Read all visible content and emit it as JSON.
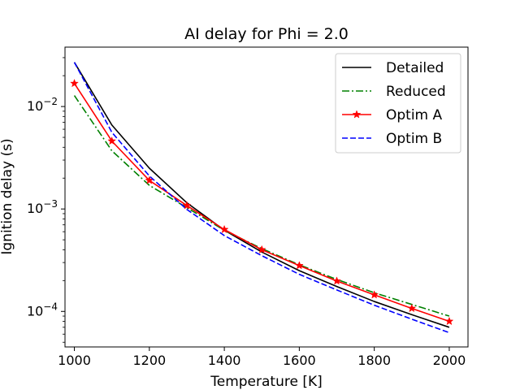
{
  "chart_data": {
    "type": "line",
    "title": "AI delay for Phi = 2.0",
    "xlabel": "Temperature [K]",
    "ylabel": "Ignition delay (s)",
    "xlim": [
      975,
      2050
    ],
    "ylim": [
      4.5e-05,
      0.038
    ],
    "yscale": "log",
    "x_ticks": [
      1000,
      1200,
      1400,
      1600,
      1800,
      2000
    ],
    "y_ticks": [
      {
        "value": 0.0001,
        "base": "10",
        "exp": "−4"
      },
      {
        "value": 0.001,
        "base": "10",
        "exp": "−3"
      },
      {
        "value": 0.01,
        "base": "10",
        "exp": "−2"
      }
    ],
    "grid": false,
    "legend_position": "top-right",
    "series": [
      {
        "name": "Detailed",
        "color": "#000000",
        "linestyle": "solid",
        "marker": "none",
        "x": [
          1000,
          1100,
          1200,
          1300,
          1400,
          1500,
          1600,
          1700,
          1800,
          1900,
          2000
        ],
        "y": [
          0.027,
          0.0066,
          0.0025,
          0.00115,
          0.00062,
          0.00038,
          0.00025,
          0.000175,
          0.000125,
          9.3e-05,
          7e-05
        ]
      },
      {
        "name": "Reduced",
        "color": "#008000",
        "linestyle": "dashdot",
        "marker": "none",
        "x": [
          1000,
          1100,
          1200,
          1300,
          1400,
          1500,
          1600,
          1700,
          1800,
          1900,
          2000
        ],
        "y": [
          0.0128,
          0.0037,
          0.0017,
          0.00103,
          0.00062,
          0.00041,
          0.000285,
          0.000205,
          0.000152,
          0.000117,
          9e-05
        ]
      },
      {
        "name": "Optim A",
        "color": "#ff0000",
        "linestyle": "solid",
        "marker": "star",
        "x": [
          1000,
          1100,
          1200,
          1300,
          1400,
          1500,
          1600,
          1700,
          1800,
          1900,
          2000
        ],
        "y": [
          0.0168,
          0.0046,
          0.0019,
          0.00108,
          0.00063,
          0.0004,
          0.00028,
          0.000198,
          0.000145,
          0.000107,
          8e-05
        ]
      },
      {
        "name": "Optim B",
        "color": "#0000ff",
        "linestyle": "dashed",
        "marker": "none",
        "x": [
          1000,
          1100,
          1200,
          1300,
          1400,
          1500,
          1600,
          1700,
          1800,
          1900,
          2000
        ],
        "y": [
          0.027,
          0.0056,
          0.0021,
          0.00099,
          0.00055,
          0.00035,
          0.00023,
          0.000162,
          0.000115,
          8.4e-05,
          6.2e-05
        ]
      }
    ]
  }
}
